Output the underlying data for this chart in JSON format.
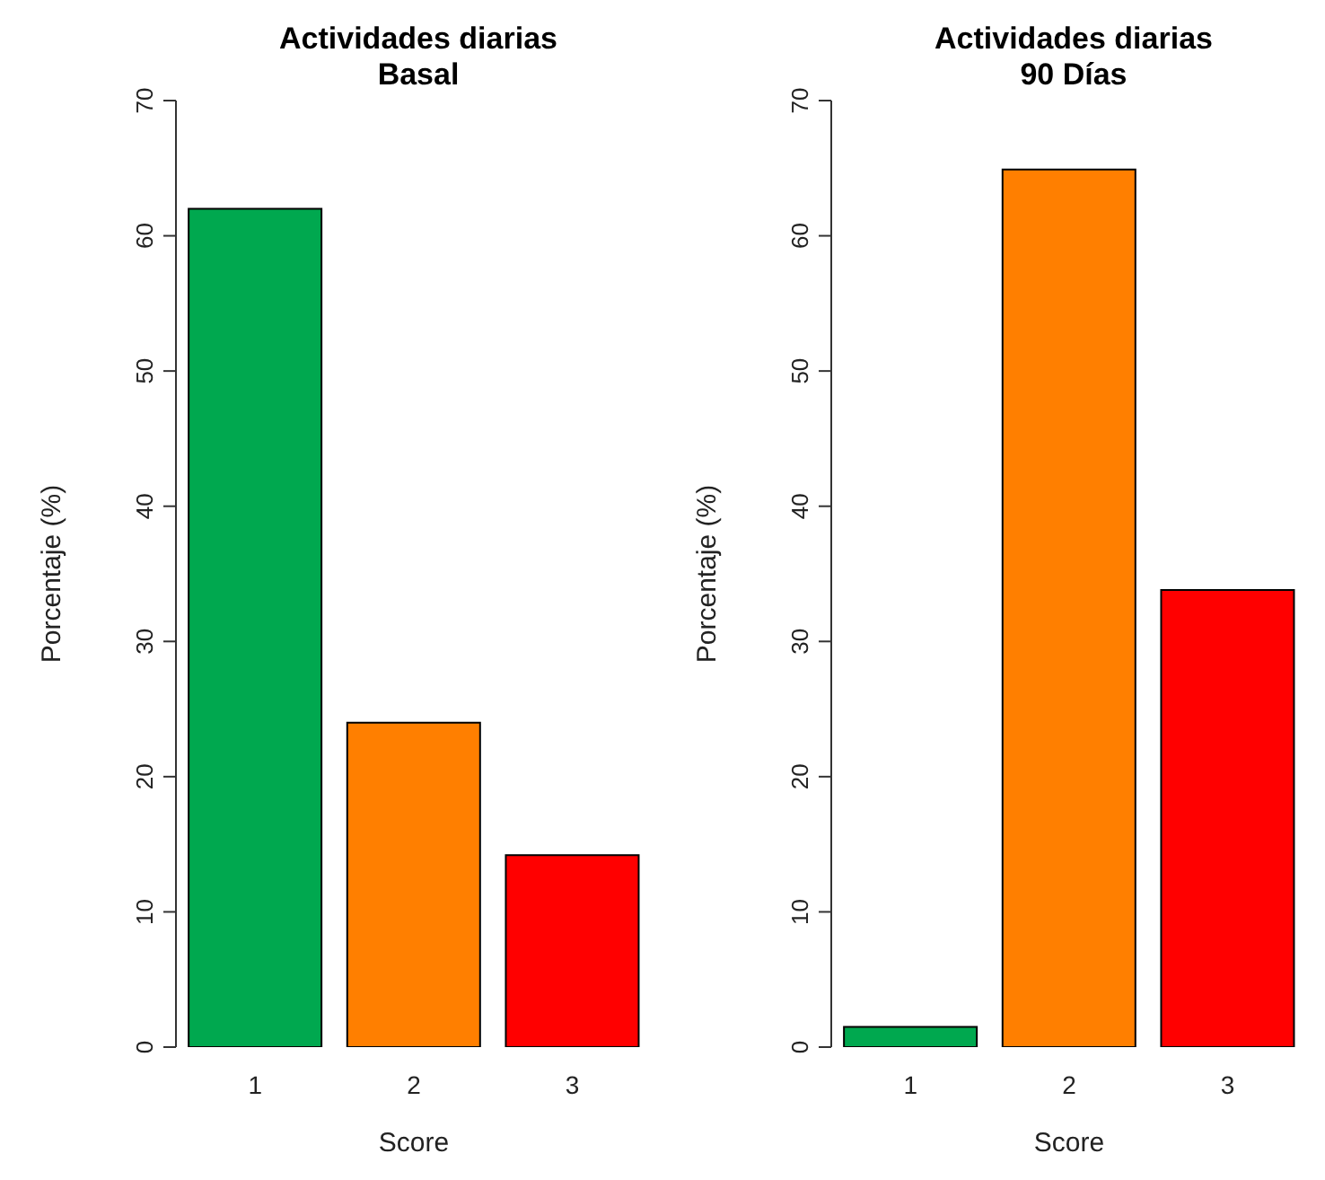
{
  "chart_data": [
    {
      "type": "bar",
      "title": "Actividades diarias\nBasal",
      "xlabel": "Score",
      "ylabel": "Porcentaje (%)",
      "categories": [
        "1",
        "2",
        "3"
      ],
      "values": [
        62,
        24,
        14.2
      ],
      "colors": [
        "#00a84f",
        "#ff7f00",
        "#ff0000"
      ],
      "ylim": [
        0,
        70
      ],
      "yticks": [
        0,
        10,
        20,
        30,
        40,
        50,
        60,
        70
      ],
      "grid": false,
      "legend": false
    },
    {
      "type": "bar",
      "title": "Actividades diarias\n90 Días",
      "xlabel": "Score",
      "ylabel": "Porcentaje (%)",
      "categories": [
        "1",
        "2",
        "3"
      ],
      "values": [
        1.5,
        64.9,
        33.8
      ],
      "colors": [
        "#00a84f",
        "#ff7f00",
        "#ff0000"
      ],
      "ylim": [
        0,
        70
      ],
      "yticks": [
        0,
        10,
        20,
        30,
        40,
        50,
        60,
        70
      ],
      "grid": false,
      "legend": false
    }
  ]
}
